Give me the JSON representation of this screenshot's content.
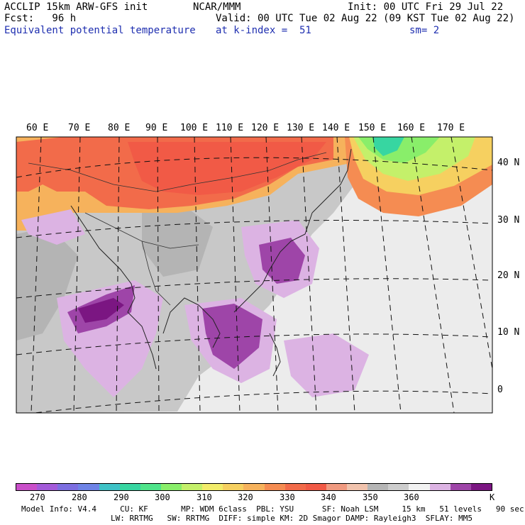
{
  "header": {
    "model": "ACCLIP 15km ARW-GFS init",
    "forecast": "Fcst:   96 h",
    "field": "Equivalent potential temperature",
    "center": "NCAR/MMM",
    "init": "Init: 00 UTC Fri 29 Jul 22",
    "valid": "Valid: 00 UTC Tue 02 Aug 22 (09 KST Tue 02 Aug 22)",
    "level": "at k-index =  51",
    "smoothing": "sm= 2"
  },
  "map": {
    "lon_labels": [
      "60 E",
      "70 E",
      "80 E",
      "90 E",
      "100 E",
      "110 E",
      "120 E",
      "130 E",
      "140 E",
      "150 E",
      "160 E",
      "170 E"
    ],
    "lat_labels": [
      "40 N",
      "30 N",
      "20 N",
      "10 N",
      "0"
    ]
  },
  "colorbar": {
    "colors": [
      "#c94fc9",
      "#a35ad9",
      "#7c6ee0",
      "#6e83e6",
      "#3ec2c6",
      "#37d6a1",
      "#4fe48a",
      "#89ee6a",
      "#c4f06a",
      "#f2ec6a",
      "#f6d060",
      "#f6b25c",
      "#f58c52",
      "#f26b4a",
      "#f15a46",
      "#f09a80",
      "#f1c3ad",
      "#b5b5b5",
      "#cdcdcd",
      "#f2f2f2",
      "#dcb3e3",
      "#9e45a8",
      "#7b1682"
    ],
    "labels": [
      "270",
      "280",
      "290",
      "300",
      "310",
      "320",
      "330",
      "340",
      "350",
      "360"
    ],
    "unit": "K"
  },
  "footer": {
    "line1": "Model Info: V4.4     CU: KF       MP: WDM 6class  PBL: YSU      SF: Noah LSM     15 km   51 levels   90 sec",
    "line2": "LW: RRTMG   SW: RRTMG  DIFF: simple KM: 2D Smagor DAMP: Rayleigh3  SFLAY: MM5"
  }
}
